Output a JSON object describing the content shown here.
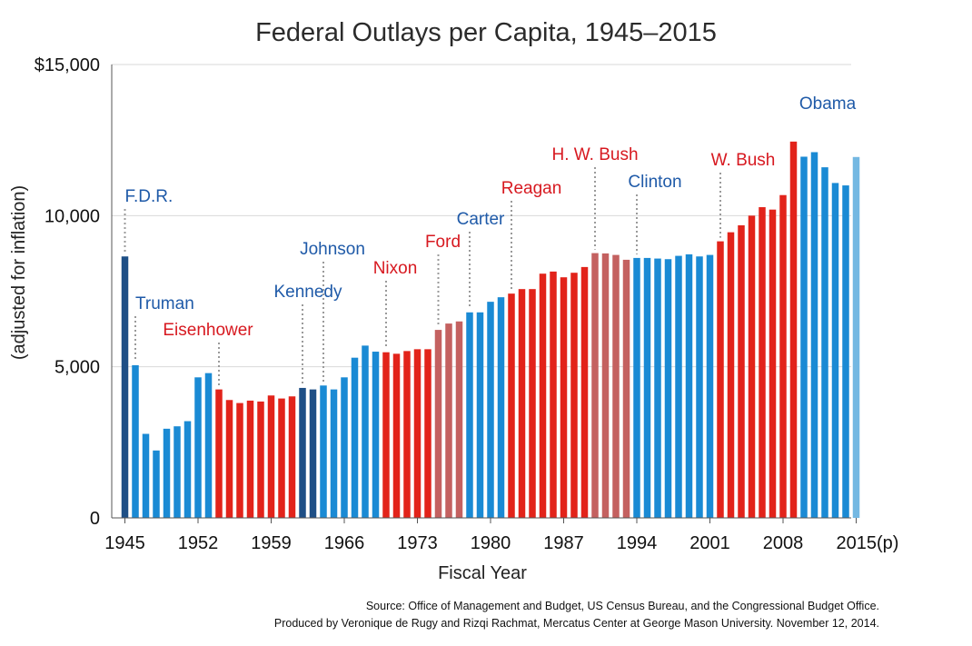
{
  "chart_data": {
    "type": "bar",
    "title": "Federal Outlays per Capita, 1945–2015",
    "ylabel": "(adjusted for inflation)",
    "xlabel": "Fiscal Year",
    "ylim": [
      0,
      15000
    ],
    "y_ticks": [
      0,
      5000,
      10000,
      15000
    ],
    "y_tick_labels": [
      "0",
      "5,000",
      "10,000",
      "$15,000"
    ],
    "x_tick_labels": [
      "1945",
      "1952",
      "1959",
      "1966",
      "1973",
      "1980",
      "1987",
      "1994",
      "2001",
      "2008",
      "2015(p)"
    ],
    "x_tick_years": [
      1945,
      1952,
      1959,
      1966,
      1973,
      1980,
      1987,
      1994,
      2001,
      2008,
      2015
    ],
    "grid": true,
    "colors": {
      "democrat": "#1a8ad4",
      "democrat_first_year": "#1e4f86",
      "republican": "#e2231a",
      "republican_unelected": "#c46160",
      "projected": "#74b8e2",
      "label_democrat": "#1f5aa8",
      "label_republican": "#d71920",
      "grid": "#d9d9d9",
      "leader": "#9a9a9a"
    },
    "years": [
      1945,
      1946,
      1947,
      1948,
      1949,
      1950,
      1951,
      1952,
      1953,
      1954,
      1955,
      1956,
      1957,
      1958,
      1959,
      1960,
      1961,
      1962,
      1963,
      1964,
      1965,
      1966,
      1967,
      1968,
      1969,
      1970,
      1971,
      1972,
      1973,
      1974,
      1975,
      1976,
      1977,
      1978,
      1979,
      1980,
      1981,
      1982,
      1983,
      1984,
      1985,
      1986,
      1987,
      1988,
      1989,
      1990,
      1991,
      1992,
      1993,
      1994,
      1995,
      1996,
      1997,
      1998,
      1999,
      2000,
      2001,
      2002,
      2003,
      2004,
      2005,
      2006,
      2007,
      2008,
      2009,
      2010,
      2011,
      2012,
      2013,
      2014,
      2015
    ],
    "values": [
      8650,
      5050,
      2780,
      2230,
      2950,
      3030,
      3200,
      4650,
      4790,
      4250,
      3900,
      3800,
      3880,
      3850,
      4050,
      3950,
      4020,
      4300,
      4250,
      4380,
      4250,
      4650,
      5300,
      5700,
      5500,
      5480,
      5430,
      5520,
      5580,
      5580,
      6220,
      6430,
      6500,
      6800,
      6800,
      7150,
      7300,
      7420,
      7570,
      7570,
      8080,
      8150,
      7960,
      8110,
      8300,
      8760,
      8750,
      8700,
      8540,
      8600,
      8600,
      8580,
      8560,
      8670,
      8720,
      8650,
      8700,
      9150,
      9450,
      9680,
      10000,
      10280,
      10200,
      10680,
      12450,
      11950,
      12100,
      11600,
      11080,
      11000,
      11940
    ],
    "bar_party": [
      "D1",
      "D",
      "D",
      "D",
      "D",
      "D",
      "D",
      "D",
      "D",
      "R",
      "R",
      "R",
      "R",
      "R",
      "R",
      "R",
      "R",
      "D1",
      "D1",
      "D",
      "D",
      "D",
      "D",
      "D",
      "D",
      "R",
      "R",
      "R",
      "R",
      "R",
      "RU",
      "RU",
      "RU",
      "D",
      "D",
      "D",
      "D",
      "R",
      "R",
      "R",
      "R",
      "R",
      "R",
      "R",
      "R",
      "RU",
      "RU",
      "RU",
      "RU",
      "D",
      "D",
      "D",
      "D",
      "D",
      "D",
      "D",
      "D",
      "R",
      "R",
      "R",
      "R",
      "R",
      "R",
      "R",
      "R",
      "D",
      "D",
      "D",
      "D",
      "D",
      "P"
    ],
    "presidents": [
      {
        "name": "F.D.R.",
        "year": 1945,
        "party": "D"
      },
      {
        "name": "Truman",
        "year": 1946,
        "party": "D"
      },
      {
        "name": "Eisenhower",
        "year": 1954,
        "party": "R"
      },
      {
        "name": "Kennedy",
        "year": 1962,
        "party": "D"
      },
      {
        "name": "Johnson",
        "year": 1964,
        "party": "D"
      },
      {
        "name": "Nixon",
        "year": 1970,
        "party": "R"
      },
      {
        "name": "Ford",
        "year": 1975,
        "party": "R"
      },
      {
        "name": "Carter",
        "year": 1978,
        "party": "D"
      },
      {
        "name": "Reagan",
        "year": 1982,
        "party": "R"
      },
      {
        "name": "H. W. Bush",
        "year": 1990,
        "party": "R"
      },
      {
        "name": "Clinton",
        "year": 1994,
        "party": "D"
      },
      {
        "name": "W. Bush",
        "year": 2002,
        "party": "R"
      },
      {
        "name": "Obama",
        "year": 2010,
        "party": "D"
      }
    ]
  },
  "source_note": {
    "line1": "Source: Office of Management and Budget, US Census Bureau, and the Congressional Budget Office.",
    "line2": "Produced by Veronique de Rugy and Rizqi Rachmat, Mercatus Center at George Mason University. November 12, 2014."
  }
}
